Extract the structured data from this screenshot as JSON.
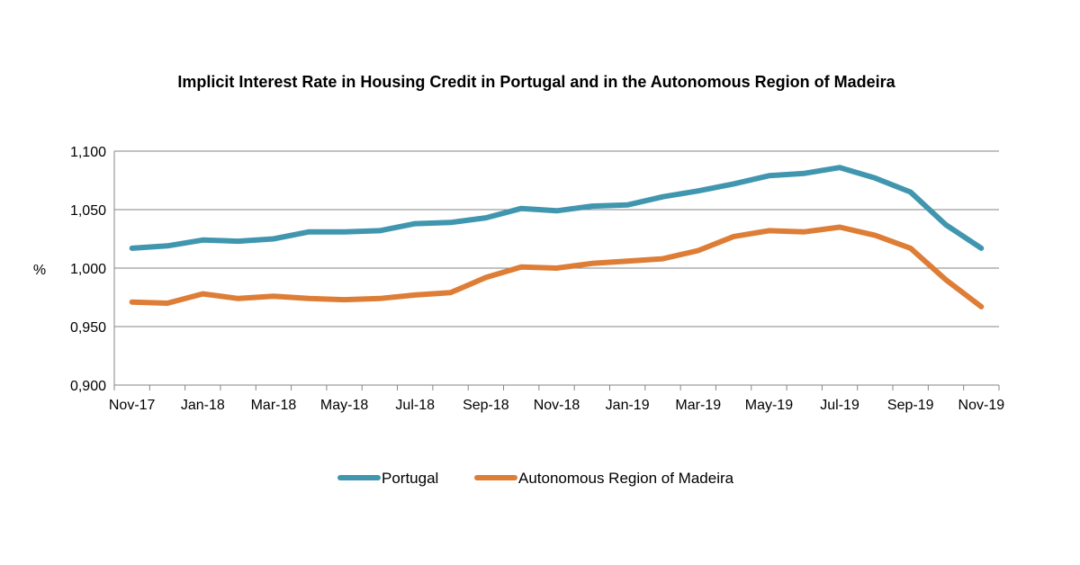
{
  "chart_data": {
    "type": "line",
    "title": "Implicit Interest Rate in Housing Credit in Portugal and in the Autonomous Region of Madeira",
    "xlabel": "",
    "ylabel": "%",
    "ylim": [
      0.9,
      1.1
    ],
    "y_tick_labels": [
      "0,900",
      "0,950",
      "1,000",
      "1,050",
      "1,100"
    ],
    "y_tick_values": [
      0.9,
      0.95,
      1.0,
      1.05,
      1.1
    ],
    "grid": true,
    "legend_position": "bottom",
    "x": [
      "Nov-17",
      "Dec-17",
      "Jan-18",
      "Feb-18",
      "Mar-18",
      "Apr-18",
      "May-18",
      "Jun-18",
      "Jul-18",
      "Aug-18",
      "Sep-18",
      "Oct-18",
      "Nov-18",
      "Dec-18",
      "Jan-19",
      "Feb-19",
      "Mar-19",
      "Apr-19",
      "May-19",
      "Jun-19",
      "Jul-19",
      "Aug-19",
      "Sep-19",
      "Oct-19",
      "Nov-19"
    ],
    "x_tick_labels": [
      "Nov-17",
      "Jan-18",
      "Mar-18",
      "May-18",
      "Jul-18",
      "Sep-18",
      "Nov-18",
      "Jan-19",
      "Mar-19",
      "May-19",
      "Jul-19",
      "Sep-19",
      "Nov-19"
    ],
    "series": [
      {
        "name": "Portugal",
        "color": "#4196AF",
        "values": [
          1.017,
          1.019,
          1.024,
          1.023,
          1.025,
          1.031,
          1.031,
          1.032,
          1.038,
          1.039,
          1.043,
          1.051,
          1.049,
          1.053,
          1.054,
          1.061,
          1.066,
          1.072,
          1.079,
          1.081,
          1.086,
          1.077,
          1.065,
          1.037,
          1.017
        ]
      },
      {
        "name": "Autonomous Region of Madeira",
        "color": "#DE7D35",
        "values": [
          0.971,
          0.97,
          0.978,
          0.974,
          0.976,
          0.974,
          0.973,
          0.974,
          0.977,
          0.979,
          0.992,
          1.001,
          1.0,
          1.004,
          1.006,
          1.008,
          1.015,
          1.027,
          1.032,
          1.031,
          1.035,
          1.028,
          1.017,
          0.99,
          0.967
        ]
      }
    ]
  }
}
